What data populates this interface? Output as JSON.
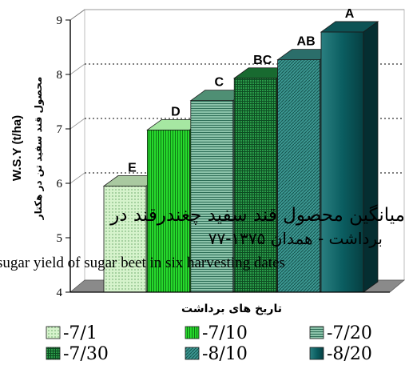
{
  "chart_data": {
    "type": "bar",
    "title": "",
    "xlabel": "تاریخ های برداشت",
    "ylabel_en": "W.S.Y (t/ha)",
    "ylabel_fa": "محصول قند سفید تن در هکتار",
    "ylim": [
      4,
      9
    ],
    "yticks": [
      "4",
      "5",
      "6",
      "7",
      "8",
      "9"
    ],
    "categories": [
      "-7/1",
      "-7/10",
      "-7/20",
      "-7/30",
      "-8/10",
      "-8/20"
    ],
    "values": [
      5.95,
      6.98,
      7.52,
      7.93,
      8.27,
      8.78
    ],
    "letters": [
      "E",
      "D",
      "C",
      "BC",
      "AB",
      "A"
    ],
    "colors": [
      "#cdeec3",
      "#27d82d",
      "#6ca892",
      "#1e8a3e",
      "#2f8a84",
      "#0f6466"
    ],
    "grid": "dashed horizontal at 6, 7, 8",
    "legend_position": "bottom"
  },
  "overlay_text": {
    "caption_fa_line1": "میانگین محصول قند سفید چغندرقند در",
    "caption_fa_line2": "برداشت - همدان ۱۳۷۵-۷۷",
    "caption_en": "sugar yield of sugar beet in six harvesting dates"
  }
}
